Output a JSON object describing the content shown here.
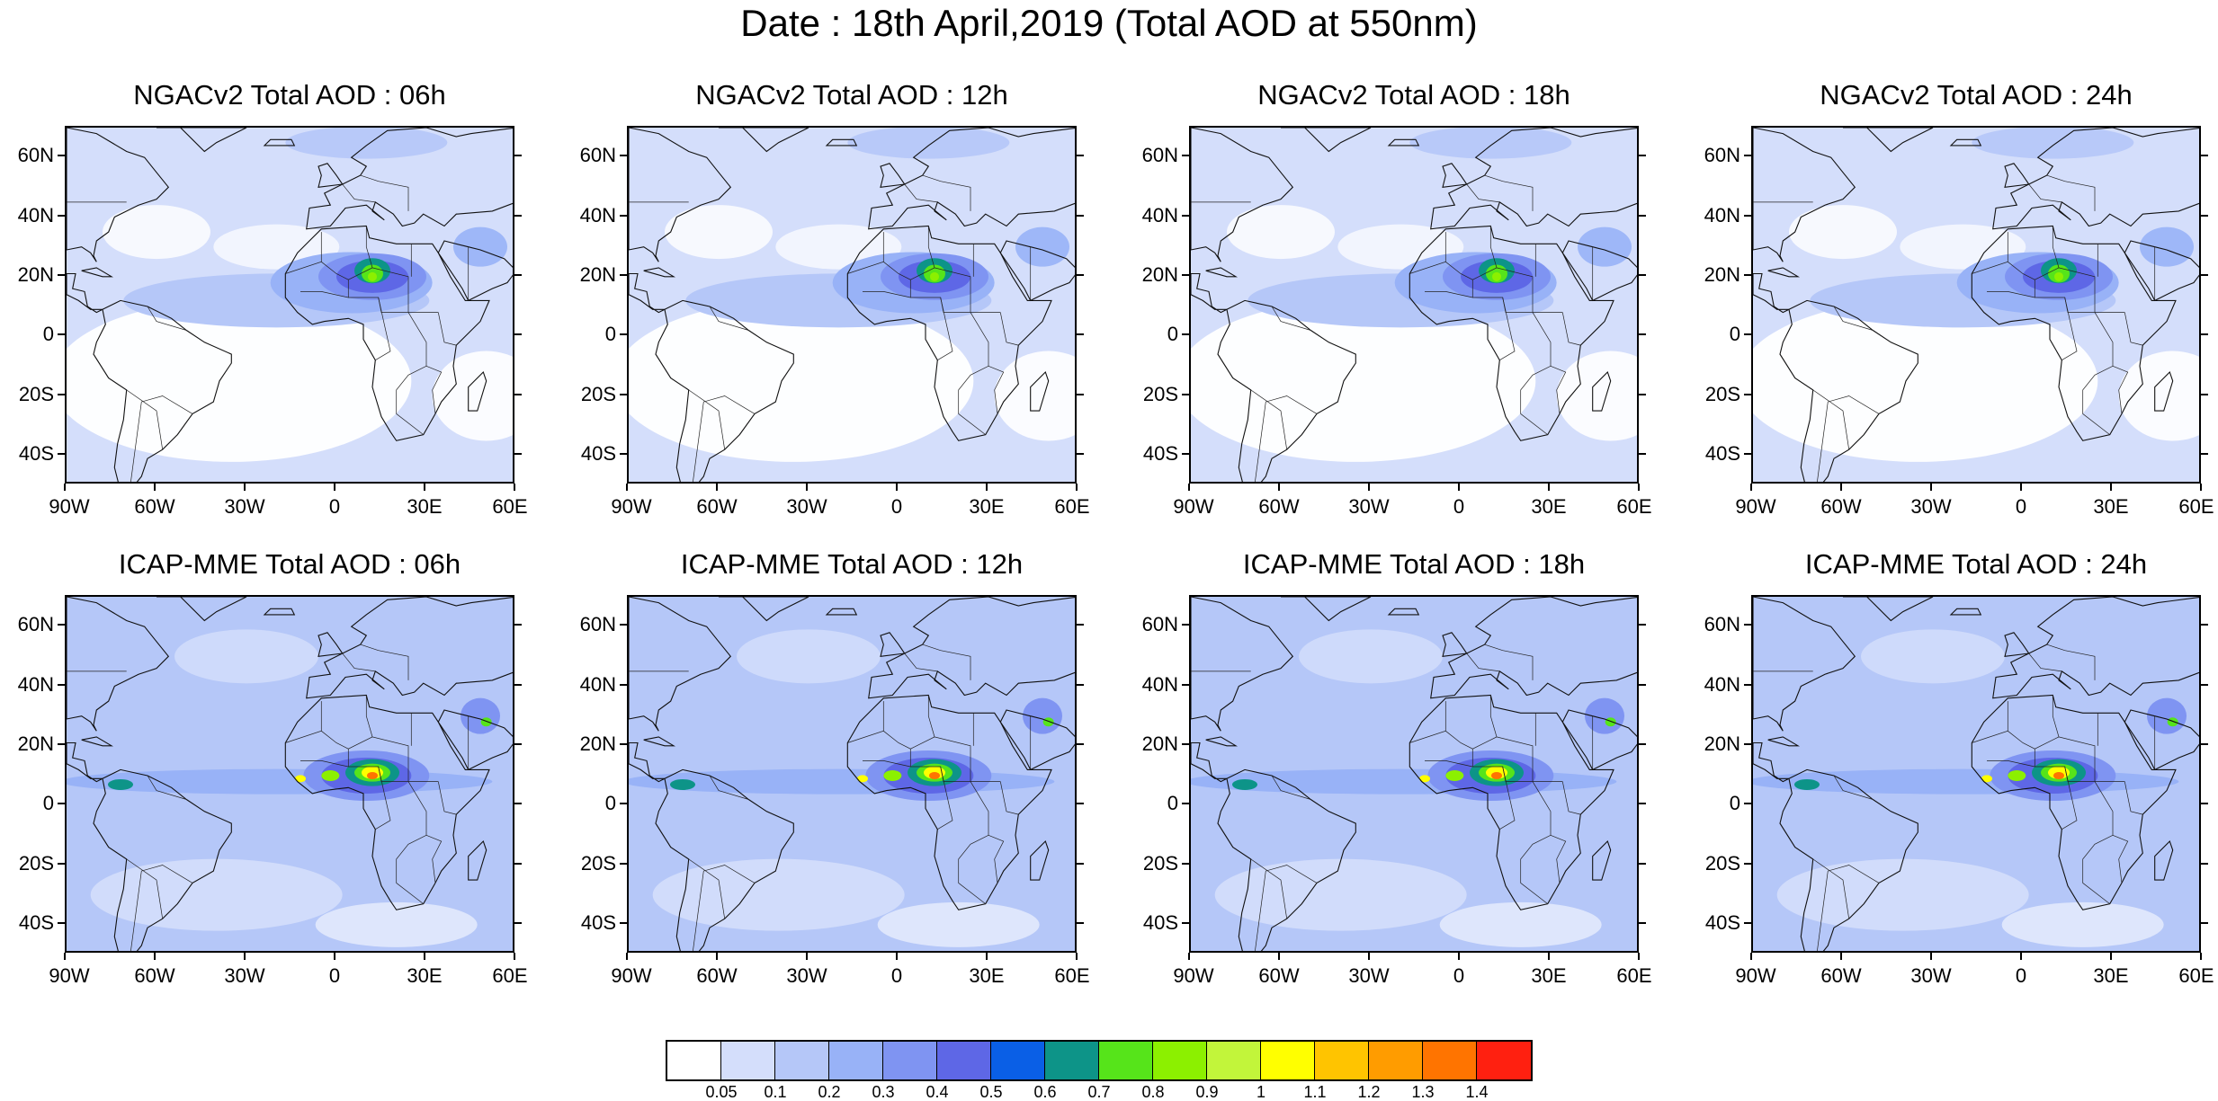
{
  "title": "Date : 18th April,2019 (Total AOD at 550nm)",
  "panels": [
    {
      "title": "NGACv2 Total AOD : 06h",
      "model": "NGACv2",
      "hour": "06h"
    },
    {
      "title": "NGACv2 Total AOD : 12h",
      "model": "NGACv2",
      "hour": "12h"
    },
    {
      "title": "NGACv2 Total AOD : 18h",
      "model": "NGACv2",
      "hour": "18h"
    },
    {
      "title": "NGACv2 Total AOD : 24h",
      "model": "NGACv2",
      "hour": "24h"
    },
    {
      "title": "ICAP-MME Total AOD : 06h",
      "model": "ICAP-MME",
      "hour": "06h"
    },
    {
      "title": "ICAP-MME Total AOD : 12h",
      "model": "ICAP-MME",
      "hour": "12h"
    },
    {
      "title": "ICAP-MME Total AOD : 18h",
      "model": "ICAP-MME",
      "hour": "18h"
    },
    {
      "title": "ICAP-MME Total AOD : 24h",
      "model": "ICAP-MME",
      "hour": "24h"
    }
  ],
  "lat_ticks": [
    "60N",
    "40N",
    "20N",
    "0",
    "20S",
    "40S"
  ],
  "lon_ticks": [
    "90W",
    "60W",
    "30W",
    "0",
    "30E",
    "60E"
  ],
  "map_extent": {
    "lon": [
      -90,
      60
    ],
    "lat": [
      -50,
      70
    ]
  },
  "colorbar": {
    "labels": [
      "0.05",
      "0.1",
      "0.2",
      "0.3",
      "0.4",
      "0.5",
      "0.6",
      "0.7",
      "0.8",
      "0.9",
      "1",
      "1.1",
      "1.2",
      "1.3",
      "1.4"
    ],
    "colors": [
      "#ffffff",
      "#d4defb",
      "#b5c7f8",
      "#98b2f7",
      "#7f94f2",
      "#5e67e6",
      "#0a5fe6",
      "#0d9488",
      "#56e41a",
      "#8cf000",
      "#c2f53a",
      "#ffff00",
      "#ffc400",
      "#ff9c00",
      "#ff7400",
      "#ff2010"
    ]
  }
}
